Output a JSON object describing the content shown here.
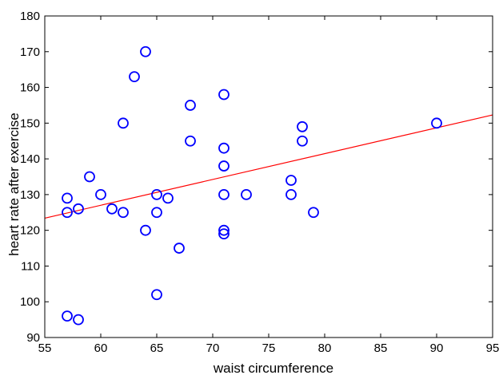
{
  "chart_data": {
    "type": "scatter",
    "title": "",
    "xlabel": "waist circumference",
    "ylabel": "heart rate after exercise",
    "xlim": [
      55,
      95
    ],
    "ylim": [
      90,
      180
    ],
    "xticks": [
      55,
      60,
      65,
      70,
      75,
      80,
      85,
      90,
      95
    ],
    "yticks": [
      90,
      100,
      110,
      120,
      130,
      140,
      150,
      160,
      170,
      180
    ],
    "grid": false,
    "legend": "none",
    "marker_color": "#0000ff",
    "line_color": "#ff0000",
    "points": [
      {
        "x": 57,
        "y": 129
      },
      {
        "x": 57,
        "y": 125
      },
      {
        "x": 57,
        "y": 96
      },
      {
        "x": 58,
        "y": 126
      },
      {
        "x": 58,
        "y": 95
      },
      {
        "x": 59,
        "y": 135
      },
      {
        "x": 60,
        "y": 130
      },
      {
        "x": 61,
        "y": 126
      },
      {
        "x": 62,
        "y": 150
      },
      {
        "x": 62,
        "y": 125
      },
      {
        "x": 63,
        "y": 163
      },
      {
        "x": 64,
        "y": 170
      },
      {
        "x": 64,
        "y": 120
      },
      {
        "x": 65,
        "y": 130
      },
      {
        "x": 65,
        "y": 125
      },
      {
        "x": 65,
        "y": 102
      },
      {
        "x": 66,
        "y": 129
      },
      {
        "x": 67,
        "y": 115
      },
      {
        "x": 68,
        "y": 155
      },
      {
        "x": 68,
        "y": 145
      },
      {
        "x": 71,
        "y": 158
      },
      {
        "x": 71,
        "y": 143
      },
      {
        "x": 71,
        "y": 138
      },
      {
        "x": 71,
        "y": 130
      },
      {
        "x": 71,
        "y": 120
      },
      {
        "x": 71,
        "y": 119
      },
      {
        "x": 73,
        "y": 130
      },
      {
        "x": 77,
        "y": 134
      },
      {
        "x": 77,
        "y": 130
      },
      {
        "x": 78,
        "y": 149
      },
      {
        "x": 78,
        "y": 145
      },
      {
        "x": 79,
        "y": 125
      },
      {
        "x": 90,
        "y": 150
      }
    ],
    "fit_line": {
      "x": [
        55,
        95
      ],
      "y": [
        123.4,
        152.3
      ]
    }
  }
}
